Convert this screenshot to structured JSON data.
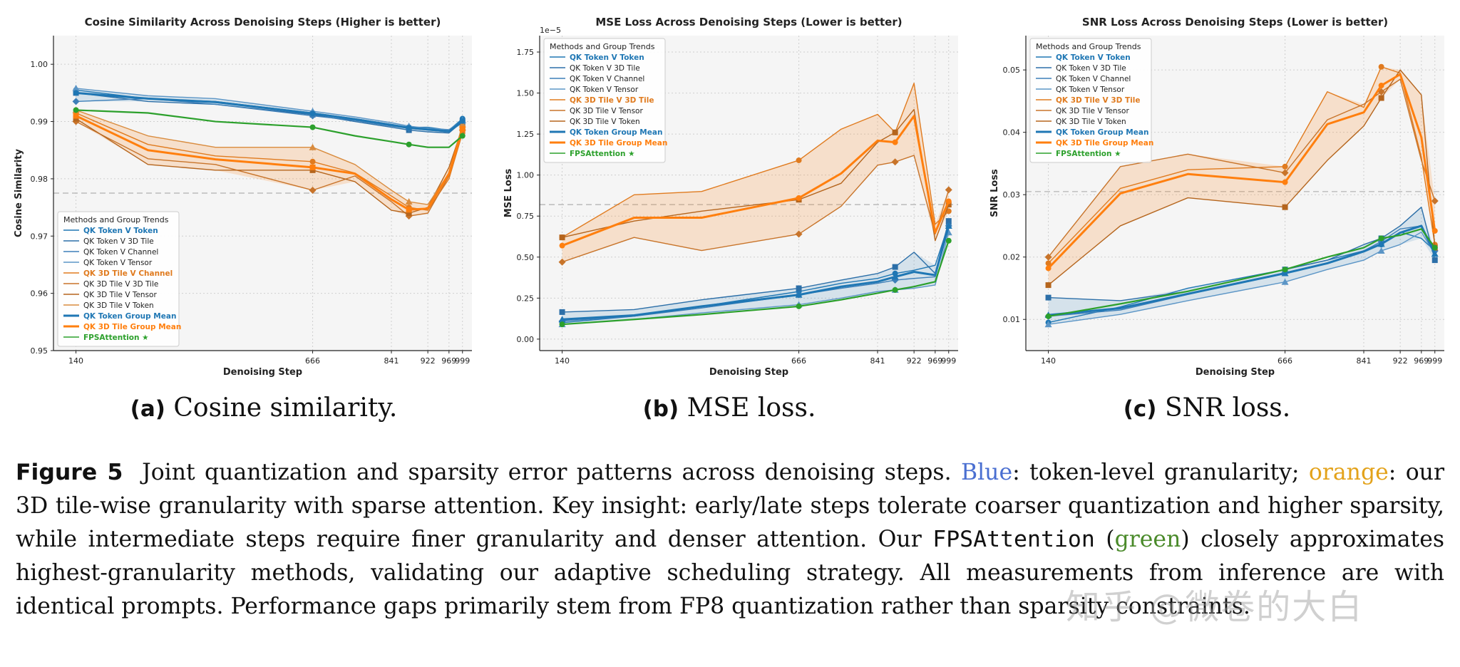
{
  "figure": {
    "subcaptions": [
      {
        "tag": "(a)",
        "text": "Cosine similarity."
      },
      {
        "tag": "(b)",
        "text": "MSE loss."
      },
      {
        "tag": "(c)",
        "text": "SNR loss."
      }
    ],
    "caption": {
      "label": "Figure 5",
      "p1": "Joint quantization and sparsity error patterns across denoising steps.",
      "blue_word": "Blue",
      "p2": ": token-level granularity;",
      "orange_word": "orange",
      "p3": ": our 3D tile-wise granularity with sparse attention. Key insight: early/late steps tolerate coarser quantization and higher sparsity, while intermediate steps require finer granularity and denser attention. Our",
      "method": "FPSAttention",
      "p4": "(",
      "green_word": "green",
      "p5": ") closely approximates highest-granularity methods, validating our adaptive scheduling strategy. All measurements from inference are with identical prompts. Performance gaps primarily stem from FP8 quantization rather than sparsity constraints."
    },
    "watermark": "知乎 @微卷的大白"
  },
  "colors": {
    "blue": "#1f77b4",
    "orange": "#ff7f0e",
    "green": "#2ca02c",
    "brown": "#b5651d"
  },
  "chart_data": [
    {
      "type": "line",
      "title": "Cosine Similarity Across Denoising Steps (Higher is better)",
      "xlabel": "Denoising Step",
      "ylabel": "Cosine Similarity",
      "xticks": [
        140,
        666,
        841,
        922,
        969,
        999
      ],
      "yticks": [
        0.95,
        0.96,
        0.97,
        0.98,
        0.99,
        1.0
      ],
      "ytick_labels": [
        "0.95",
        "0.96",
        "0.97",
        "0.98",
        "0.99",
        "1.00"
      ],
      "ylim": [
        0.95,
        1.005
      ],
      "exponent": "",
      "ref_line": 0.9775,
      "legend_title": "Methods and Group Trends",
      "legend_position": "lower-left",
      "grid": true,
      "series": [
        {
          "name": "QK Token V Token",
          "group": "blue",
          "bold": true,
          "x": [
            140,
            300,
            450,
            666,
            760,
            841,
            880,
            922,
            969,
            999
          ],
          "y": [
            0.9955,
            0.994,
            0.9935,
            0.9915,
            0.9905,
            0.9895,
            0.989,
            0.989,
            0.9885,
            0.9905
          ]
        },
        {
          "name": "QK Token V 3D Tile",
          "group": "blue",
          "x": [
            140,
            300,
            450,
            666,
            760,
            841,
            880,
            922,
            969,
            999
          ],
          "y": [
            0.995,
            0.9935,
            0.993,
            0.9912,
            0.99,
            0.989,
            0.9885,
            0.9882,
            0.988,
            0.99
          ]
        },
        {
          "name": "QK Token V Channel",
          "group": "blue",
          "x": [
            140,
            300,
            450,
            666,
            760,
            841,
            880,
            922,
            969,
            999
          ],
          "y": [
            0.9935,
            0.994,
            0.993,
            0.991,
            0.9902,
            0.9892,
            0.9888,
            0.9885,
            0.9882,
            0.9898
          ]
        },
        {
          "name": "QK Token V Tensor",
          "group": "blue",
          "x": [
            140,
            300,
            450,
            666,
            760,
            841,
            880,
            922,
            969,
            999
          ],
          "y": [
            0.9958,
            0.9945,
            0.994,
            0.9918,
            0.9908,
            0.9898,
            0.9892,
            0.9888,
            0.9886,
            0.9902
          ]
        },
        {
          "name": "QK 3D Tile V Channel",
          "group": "orange",
          "bold": true,
          "x": [
            140,
            300,
            450,
            666,
            760,
            841,
            880,
            922,
            969,
            999
          ],
          "y": [
            0.9915,
            0.986,
            0.984,
            0.983,
            0.981,
            0.977,
            0.975,
            0.9745,
            0.98,
            0.988
          ]
        },
        {
          "name": "QK 3D Tile V 3D Tile",
          "group": "orange",
          "x": [
            140,
            300,
            450,
            666,
            760,
            841,
            880,
            922,
            969,
            999
          ],
          "y": [
            0.99,
            0.9835,
            0.9825,
            0.978,
            0.9805,
            0.976,
            0.9735,
            0.974,
            0.9805,
            0.9885
          ]
        },
        {
          "name": "QK 3D Tile V Tensor",
          "group": "orange",
          "x": [
            140,
            300,
            450,
            666,
            760,
            841,
            880,
            922,
            969,
            999
          ],
          "y": [
            0.9905,
            0.9825,
            0.9815,
            0.9815,
            0.9795,
            0.9745,
            0.974,
            0.975,
            0.982,
            0.989
          ]
        },
        {
          "name": "QK 3D Tile V Token",
          "group": "orange",
          "x": [
            140,
            300,
            450,
            666,
            760,
            841,
            880,
            922,
            969,
            999
          ],
          "y": [
            0.992,
            0.9875,
            0.9855,
            0.9855,
            0.9825,
            0.978,
            0.976,
            0.9755,
            0.981,
            0.9895
          ]
        },
        {
          "name": "QK Token Group Mean",
          "group": "blue",
          "bold": true,
          "mean": true,
          "x": [
            140,
            300,
            450,
            666,
            760,
            841,
            880,
            922,
            969,
            999
          ],
          "y": [
            0.995,
            0.994,
            0.9934,
            0.9914,
            0.9904,
            0.9894,
            0.9889,
            0.9886,
            0.9883,
            0.9901
          ]
        },
        {
          "name": "QK 3D Tile Group Mean",
          "group": "orange",
          "bold": true,
          "mean": true,
          "x": [
            140,
            300,
            450,
            666,
            760,
            841,
            880,
            922,
            969,
            999
          ],
          "y": [
            0.991,
            0.985,
            0.9834,
            0.982,
            0.9809,
            0.9764,
            0.9746,
            0.9748,
            0.9809,
            0.9887
          ]
        },
        {
          "name": "FPSAttention ★",
          "group": "green",
          "bold": true,
          "x": [
            140,
            300,
            450,
            666,
            760,
            841,
            880,
            922,
            969,
            999
          ],
          "y": [
            0.992,
            0.9915,
            0.99,
            0.989,
            0.9875,
            0.9865,
            0.986,
            0.9855,
            0.9855,
            0.9875
          ]
        }
      ]
    },
    {
      "type": "line",
      "title": "MSE Loss Across Denoising Steps (Lower is better)",
      "xlabel": "Denoising Step",
      "ylabel": "MSE Loss",
      "xticks": [
        140,
        666,
        841,
        922,
        969,
        999
      ],
      "yticks": [
        0.0,
        0.25,
        0.5,
        0.75,
        1.0,
        1.25,
        1.5,
        1.75
      ],
      "ytick_labels": [
        "0.00",
        "0.25",
        "0.50",
        "0.75",
        "1.00",
        "1.25",
        "1.50",
        "1.75"
      ],
      "ylim": [
        -0.07,
        1.85
      ],
      "exponent": "1e−5",
      "ref_line": 0.82,
      "legend_title": "Methods and Group Trends",
      "legend_position": "upper-left",
      "grid": true,
      "series": [
        {
          "name": "QK Token V Token",
          "group": "blue",
          "bold": true,
          "x": [
            140,
            300,
            450,
            666,
            760,
            841,
            880,
            922,
            969,
            999
          ],
          "y": [
            0.1,
            0.14,
            0.2,
            0.29,
            0.34,
            0.37,
            0.4,
            0.42,
            0.45,
            0.7
          ]
        },
        {
          "name": "QK Token V 3D Tile",
          "group": "blue",
          "x": [
            140,
            300,
            450,
            666,
            760,
            841,
            880,
            922,
            969,
            999
          ],
          "y": [
            0.165,
            0.18,
            0.24,
            0.31,
            0.36,
            0.4,
            0.44,
            0.53,
            0.4,
            0.72
          ]
        },
        {
          "name": "QK Token V Channel",
          "group": "blue",
          "x": [
            140,
            300,
            450,
            666,
            760,
            841,
            880,
            922,
            969,
            999
          ],
          "y": [
            0.11,
            0.14,
            0.19,
            0.27,
            0.31,
            0.34,
            0.36,
            0.37,
            0.38,
            0.69
          ]
        },
        {
          "name": "QK Token V Tensor",
          "group": "blue",
          "x": [
            140,
            300,
            450,
            666,
            760,
            841,
            880,
            922,
            969,
            999
          ],
          "y": [
            0.09,
            0.12,
            0.16,
            0.21,
            0.25,
            0.29,
            0.3,
            0.31,
            0.33,
            0.65
          ]
        },
        {
          "name": "QK 3D Tile V 3D Tile",
          "group": "orange",
          "bold": true,
          "x": [
            140,
            300,
            450,
            666,
            760,
            841,
            880,
            922,
            969,
            999
          ],
          "y": [
            0.62,
            0.88,
            0.9,
            1.09,
            1.28,
            1.37,
            1.26,
            1.56,
            0.7,
            0.78
          ]
        },
        {
          "name": "QK 3D Tile V Tensor",
          "group": "orange",
          "x": [
            140,
            300,
            450,
            666,
            760,
            841,
            880,
            922,
            969,
            999
          ],
          "y": [
            0.47,
            0.62,
            0.54,
            0.64,
            0.81,
            1.06,
            1.08,
            1.12,
            0.64,
            0.91
          ]
        },
        {
          "name": "QK 3D Tile V Token",
          "group": "orange",
          "x": [
            140,
            300,
            450,
            666,
            760,
            841,
            880,
            922,
            969,
            999
          ],
          "y": [
            0.62,
            0.72,
            0.78,
            0.85,
            0.95,
            1.2,
            1.26,
            1.4,
            0.6,
            0.82
          ]
        },
        {
          "name": "QK Token Group Mean",
          "group": "blue",
          "bold": true,
          "mean": true,
          "x": [
            140,
            300,
            450,
            666,
            760,
            841,
            880,
            922,
            969,
            999
          ],
          "y": [
            0.12,
            0.145,
            0.2,
            0.27,
            0.32,
            0.35,
            0.38,
            0.41,
            0.39,
            0.69
          ]
        },
        {
          "name": "QK 3D Tile Group Mean",
          "group": "orange",
          "bold": true,
          "mean": true,
          "x": [
            140,
            300,
            450,
            666,
            760,
            841,
            880,
            922,
            969,
            999
          ],
          "y": [
            0.57,
            0.74,
            0.74,
            0.86,
            1.01,
            1.21,
            1.2,
            1.36,
            0.65,
            0.84
          ]
        },
        {
          "name": "FPSAttention ★",
          "group": "green",
          "bold": true,
          "x": [
            140,
            300,
            450,
            666,
            760,
            841,
            880,
            922,
            969,
            999
          ],
          "y": [
            0.09,
            0.12,
            0.15,
            0.2,
            0.24,
            0.28,
            0.3,
            0.32,
            0.35,
            0.6
          ]
        }
      ]
    },
    {
      "type": "line",
      "title": "SNR Loss Across Denoising Steps (Lower is better)",
      "xlabel": "Denoising Step",
      "ylabel": "SNR Loss",
      "xticks": [
        140,
        666,
        841,
        922,
        969,
        999
      ],
      "yticks": [
        0.01,
        0.02,
        0.03,
        0.04,
        0.05
      ],
      "ytick_labels": [
        "0.01",
        "0.02",
        "0.03",
        "0.04",
        "0.05"
      ],
      "ylim": [
        0.005,
        0.0555
      ],
      "exponent": "",
      "ref_line": 0.0305,
      "legend_title": "Methods and Group Trends",
      "legend_position": "upper-left",
      "grid": true,
      "series": [
        {
          "name": "QK Token V Token",
          "group": "blue",
          "bold": true,
          "x": [
            140,
            300,
            450,
            666,
            760,
            841,
            880,
            922,
            969,
            999
          ],
          "y": [
            0.0095,
            0.012,
            0.015,
            0.018,
            0.0195,
            0.021,
            0.022,
            0.024,
            0.023,
            0.021
          ]
        },
        {
          "name": "QK Token V 3D Tile",
          "group": "blue",
          "x": [
            140,
            300,
            450,
            666,
            760,
            841,
            880,
            922,
            969,
            999
          ],
          "y": [
            0.0135,
            0.013,
            0.0145,
            0.018,
            0.0195,
            0.022,
            0.023,
            0.025,
            0.028,
            0.0195
          ]
        },
        {
          "name": "QK Token V Channel",
          "group": "blue",
          "x": [
            140,
            300,
            450,
            666,
            760,
            841,
            880,
            922,
            969,
            999
          ],
          "y": [
            0.0105,
            0.0115,
            0.014,
            0.0175,
            0.019,
            0.021,
            0.0225,
            0.0245,
            0.025,
            0.021
          ]
        },
        {
          "name": "QK Token V Tensor",
          "group": "blue",
          "x": [
            140,
            300,
            450,
            666,
            760,
            841,
            880,
            922,
            969,
            999
          ],
          "y": [
            0.0092,
            0.0108,
            0.013,
            0.016,
            0.018,
            0.0195,
            0.021,
            0.022,
            0.024,
            0.0205
          ]
        },
        {
          "name": "QK 3D Tile V 3D Tile",
          "group": "orange",
          "bold": true,
          "x": [
            140,
            300,
            450,
            666,
            760,
            841,
            880,
            922,
            969,
            999
          ],
          "y": [
            0.019,
            0.031,
            0.034,
            0.0345,
            0.0465,
            0.044,
            0.0505,
            0.0495,
            0.036,
            0.022
          ]
        },
        {
          "name": "QK 3D Tile V Tensor",
          "group": "orange",
          "x": [
            140,
            300,
            450,
            666,
            760,
            841,
            880,
            922,
            969,
            999
          ],
          "y": [
            0.02,
            0.0345,
            0.0365,
            0.0335,
            0.042,
            0.0445,
            0.0465,
            0.0485,
            0.0355,
            0.029
          ]
        },
        {
          "name": "QK 3D Tile V Token",
          "group": "orange",
          "x": [
            140,
            300,
            450,
            666,
            760,
            841,
            880,
            922,
            969,
            999
          ],
          "y": [
            0.0155,
            0.025,
            0.0295,
            0.028,
            0.0355,
            0.041,
            0.0455,
            0.05,
            0.046,
            0.0215
          ]
        },
        {
          "name": "QK Token Group Mean",
          "group": "blue",
          "bold": true,
          "mean": true,
          "x": [
            140,
            300,
            450,
            666,
            760,
            841,
            880,
            922,
            969,
            999
          ],
          "y": [
            0.0107,
            0.0118,
            0.0141,
            0.0174,
            0.019,
            0.0209,
            0.0221,
            0.0239,
            0.025,
            0.0205
          ]
        },
        {
          "name": "QK 3D Tile Group Mean",
          "group": "orange",
          "bold": true,
          "mean": true,
          "x": [
            140,
            300,
            450,
            666,
            760,
            841,
            880,
            922,
            969,
            999
          ],
          "y": [
            0.0182,
            0.0302,
            0.0333,
            0.032,
            0.0413,
            0.0432,
            0.0475,
            0.0493,
            0.0392,
            0.0242
          ]
        },
        {
          "name": "FPSAttention ★",
          "group": "green",
          "bold": true,
          "x": [
            140,
            300,
            450,
            666,
            760,
            841,
            880,
            922,
            969,
            999
          ],
          "y": [
            0.0105,
            0.0125,
            0.0145,
            0.018,
            0.02,
            0.0215,
            0.023,
            0.0235,
            0.0245,
            0.0215
          ]
        }
      ]
    }
  ]
}
